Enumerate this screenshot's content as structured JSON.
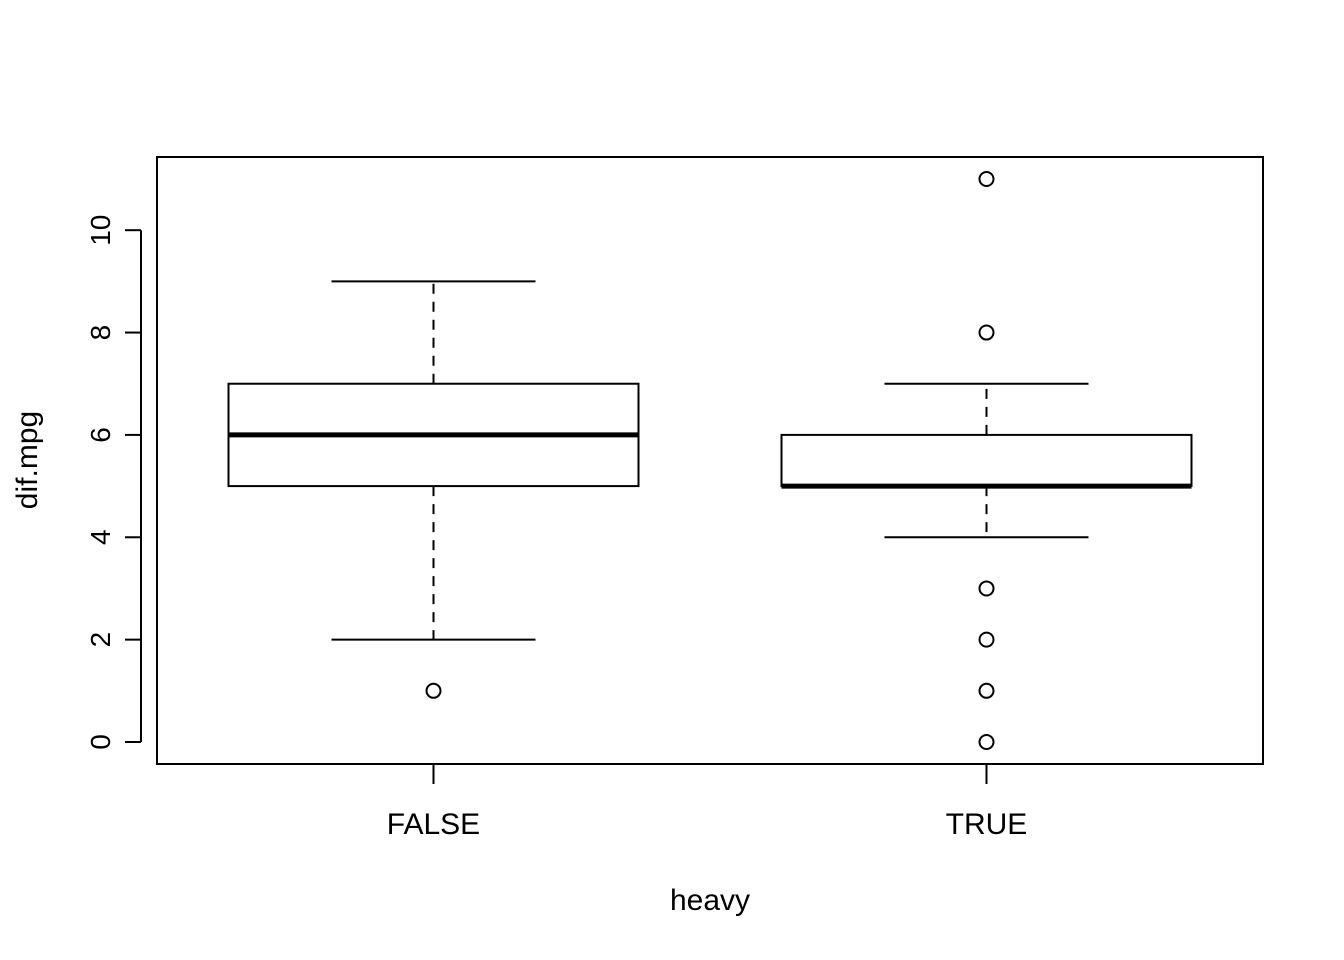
{
  "chart_data": {
    "type": "box",
    "xlabel": "heavy",
    "ylabel": "dif.mpg",
    "categories": [
      "FALSE",
      "TRUE"
    ],
    "ylim": [
      -0.43,
      11.43
    ],
    "yticks": [
      0,
      2,
      4,
      6,
      8,
      10
    ],
    "ytick_labels": [
      "0",
      "2",
      "4",
      "6",
      "8",
      "10"
    ],
    "boxes": [
      {
        "category": "FALSE",
        "whisker_low": 2,
        "q1": 5,
        "median": 6,
        "q3": 7,
        "whisker_high": 9,
        "outliers": [
          1
        ]
      },
      {
        "category": "TRUE",
        "whisker_low": 4,
        "q1": 5,
        "median": 5,
        "q3": 6,
        "whisker_high": 7,
        "outliers": [
          11,
          8,
          3,
          2,
          1,
          0
        ]
      }
    ],
    "grid": false,
    "colors": {
      "stroke": "#000000",
      "background": "#ffffff"
    }
  }
}
